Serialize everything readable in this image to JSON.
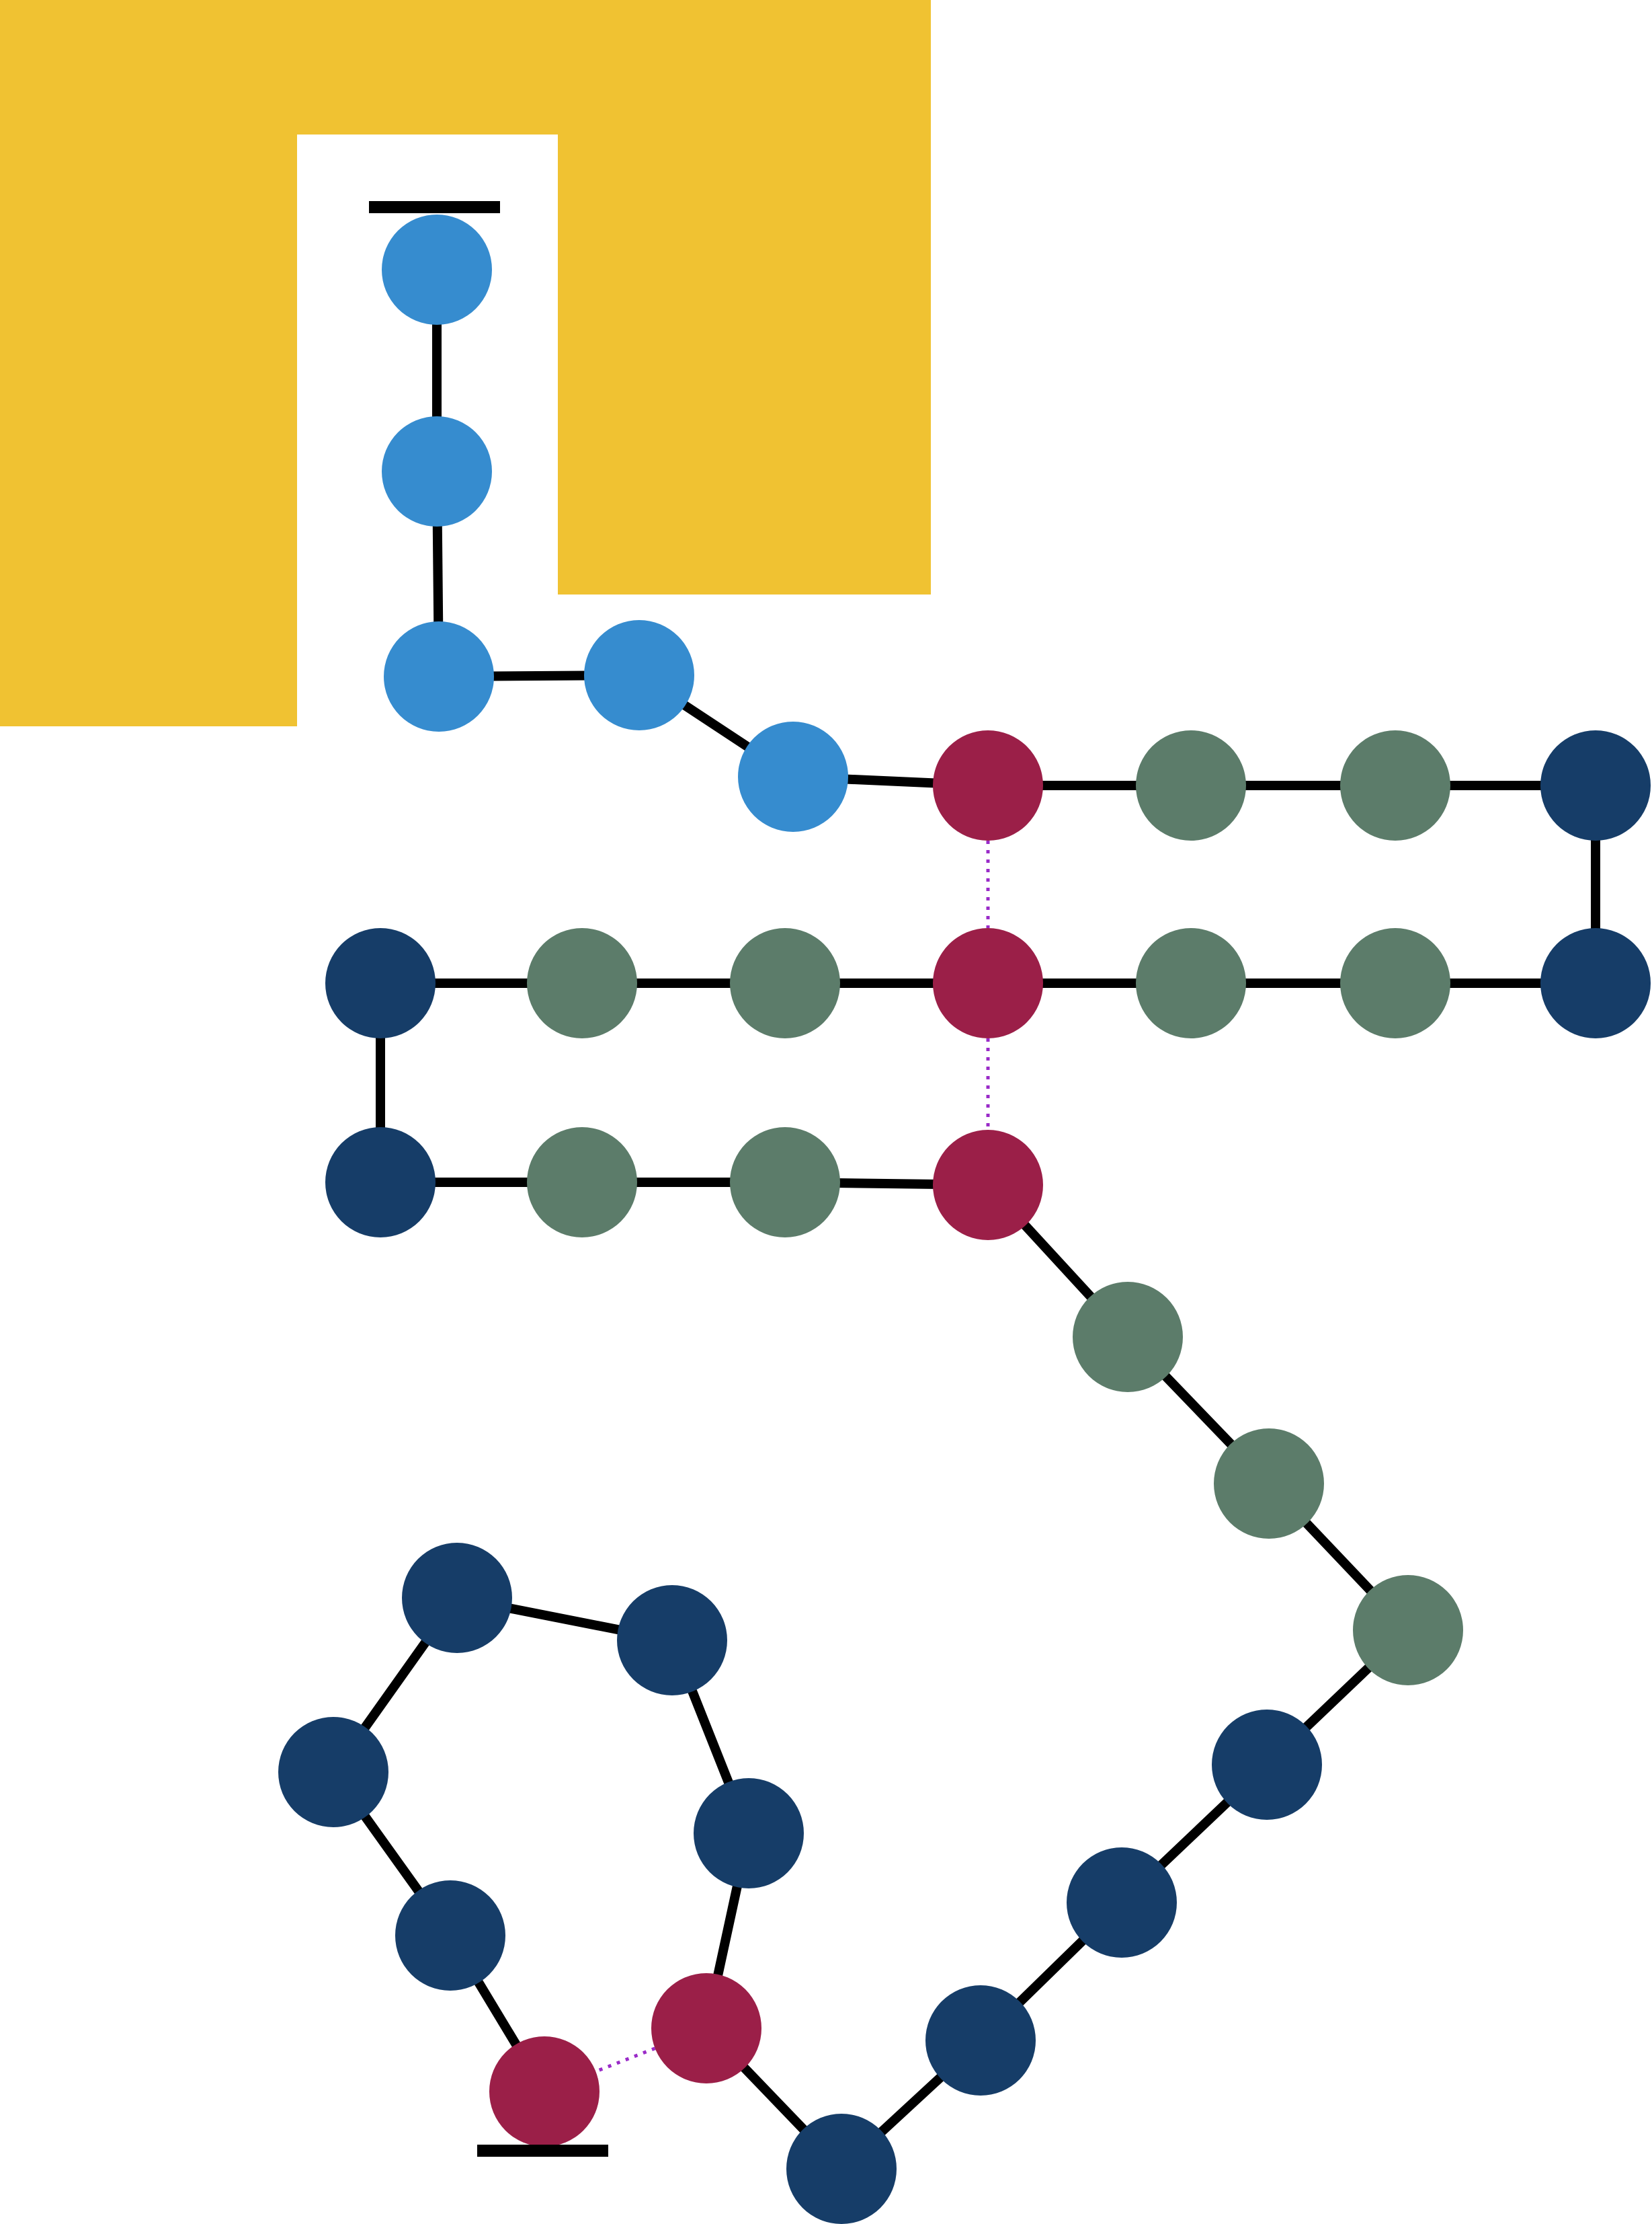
{
  "colors": {
    "membrane": "#f0c232",
    "residue_light_blue": "#368ccf",
    "residue_navy": "#163d68",
    "residue_green": "#5c7c6a",
    "residue_crimson": "#9b1f48",
    "bond": "#000000",
    "interaction": "#9a2bc8"
  },
  "chain": {
    "residues": [
      {
        "type": "light_blue"
      },
      {
        "type": "light_blue"
      },
      {
        "type": "light_blue"
      },
      {
        "type": "light_blue"
      },
      {
        "type": "light_blue"
      },
      {
        "type": "crimson"
      },
      {
        "type": "green"
      },
      {
        "type": "green"
      },
      {
        "type": "navy"
      },
      {
        "type": "navy"
      },
      {
        "type": "green"
      },
      {
        "type": "green"
      },
      {
        "type": "crimson"
      },
      {
        "type": "green"
      },
      {
        "type": "green"
      },
      {
        "type": "navy"
      },
      {
        "type": "navy"
      },
      {
        "type": "green"
      },
      {
        "type": "green"
      },
      {
        "type": "crimson"
      },
      {
        "type": "green"
      },
      {
        "type": "green"
      },
      {
        "type": "green"
      },
      {
        "type": "navy"
      },
      {
        "type": "navy"
      },
      {
        "type": "navy"
      },
      {
        "type": "navy"
      },
      {
        "type": "crimson"
      },
      {
        "type": "navy"
      },
      {
        "type": "navy"
      },
      {
        "type": "navy"
      },
      {
        "type": "navy"
      },
      {
        "type": "navy"
      },
      {
        "type": "crimson"
      }
    ],
    "termini": [
      "start-terminus",
      "end-terminus"
    ]
  },
  "interactions": [
    {
      "from": 5,
      "to": 12
    },
    {
      "from": 12,
      "to": 19
    },
    {
      "from": 27,
      "to": 33
    }
  ]
}
